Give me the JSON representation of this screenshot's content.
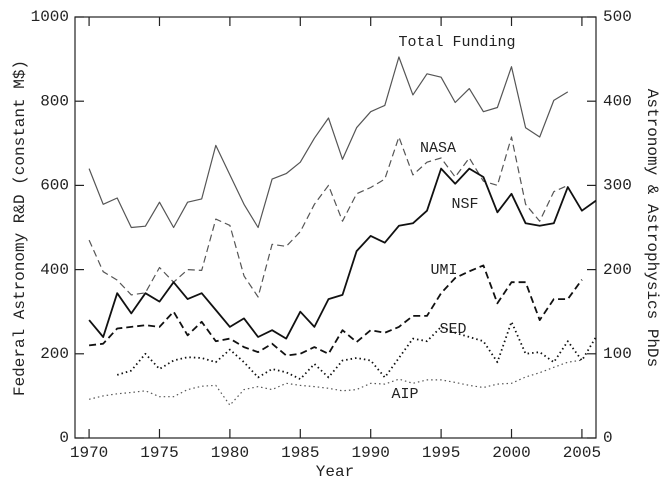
{
  "chart_data": {
    "type": "line",
    "xlabel": "Year",
    "ylabel": "Federal Astronomy R&D (constant M$)",
    "y2label": "Astronomy & Astrophysics PhDs",
    "x": [
      1970,
      1971,
      1972,
      1973,
      1974,
      1975,
      1976,
      1977,
      1978,
      1979,
      1980,
      1981,
      1982,
      1983,
      1984,
      1985,
      1986,
      1987,
      1988,
      1989,
      1990,
      1991,
      1992,
      1993,
      1994,
      1995,
      1996,
      1997,
      1998,
      1999,
      2000,
      2001,
      2002,
      2003,
      2004,
      2005,
      2006
    ],
    "xlim": [
      1969,
      2006
    ],
    "xticks": [
      1970,
      1975,
      1980,
      1985,
      1990,
      1995,
      2000,
      2005
    ],
    "ylim": [
      0,
      1000
    ],
    "yticks": [
      0,
      200,
      400,
      600,
      800,
      1000
    ],
    "y2lim": [
      0,
      500
    ],
    "y2ticks": [
      0,
      100,
      200,
      300,
      400,
      500
    ],
    "series": [
      {
        "name": "Total Funding",
        "color": "#555555",
        "dash": "solid",
        "values": [
          640,
          555,
          570,
          500,
          503,
          560,
          500,
          560,
          568,
          695,
          625,
          555,
          500,
          615,
          628,
          655,
          712,
          760,
          662,
          737,
          775,
          790,
          905,
          815,
          865,
          857,
          797,
          830,
          775,
          785,
          882,
          737,
          715,
          802,
          822,
          null,
          null
        ]
      },
      {
        "name": "NASA",
        "color": "#555555",
        "dash": "dashed",
        "values": [
          470,
          395,
          375,
          340,
          345,
          405,
          370,
          400,
          398,
          520,
          505,
          385,
          335,
          460,
          455,
          490,
          555,
          600,
          515,
          580,
          595,
          615,
          715,
          625,
          655,
          665,
          620,
          665,
          610,
          600,
          715,
          555,
          515,
          585,
          600,
          null,
          null
        ]
      },
      {
        "name": "NSF",
        "color": "#555555",
        "dash": "dotted",
        "values": [
          92,
          100,
          105,
          108,
          112,
          98,
          98,
          115,
          123,
          125,
          78,
          115,
          122,
          115,
          130,
          125,
          122,
          118,
          112,
          115,
          130,
          128,
          140,
          130,
          138,
          138,
          132,
          125,
          120,
          128,
          130,
          145,
          155,
          168,
          180,
          185,
          null
        ]
      },
      {
        "name": "UMI",
        "color": "#111111",
        "dash": "solid",
        "axis": "y2",
        "values": [
          140,
          120,
          172,
          148,
          172,
          162,
          185,
          165,
          172,
          152,
          132,
          142,
          120,
          128,
          118,
          150,
          132,
          165,
          170,
          222,
          240,
          232,
          252,
          255,
          270,
          320,
          302,
          320,
          310,
          268,
          290,
          255,
          252,
          255,
          298,
          270,
          282
        ]
      },
      {
        "name": "SED",
        "color": "#111111",
        "dash": "dashed",
        "axis": "y2",
        "values": [
          110,
          112,
          130,
          132,
          134,
          132,
          150,
          122,
          138,
          115,
          118,
          108,
          102,
          112,
          98,
          100,
          108,
          100,
          128,
          114,
          128,
          125,
          132,
          145,
          145,
          172,
          190,
          198,
          205,
          160,
          185,
          185,
          140,
          165,
          165,
          188,
          null
        ]
      },
      {
        "name": "AIP",
        "color": "#111111",
        "dash": "dotted",
        "axis": "y2",
        "values": [
          null,
          null,
          75,
          80,
          100,
          82,
          92,
          96,
          95,
          90,
          105,
          90,
          72,
          82,
          78,
          70,
          88,
          72,
          92,
          95,
          92,
          72,
          95,
          118,
          115,
          132,
          125,
          120,
          115,
          90,
          138,
          100,
          102,
          90,
          115,
          92,
          120
        ]
      }
    ]
  }
}
